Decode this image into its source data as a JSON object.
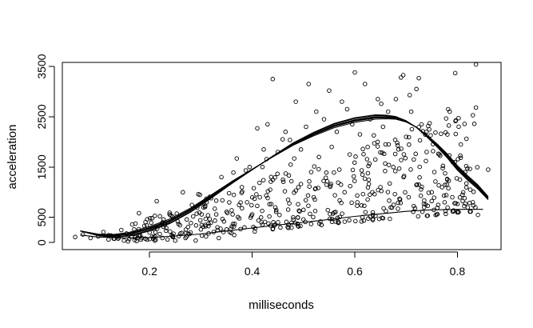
{
  "chart_data": {
    "type": "scatter",
    "title": "",
    "xlabel": "milliseconds",
    "ylabel": "acceleration",
    "xlim": [
      0.03,
      0.885
    ],
    "ylim": [
      -140,
      3580
    ],
    "xticks": [
      0.2,
      0.4,
      0.6,
      0.8
    ],
    "xtick_labels": [
      "0.2",
      "0.4",
      "0.6",
      "0.8"
    ],
    "yticks": [
      0,
      500,
      1500,
      2500,
      3500
    ],
    "ytick_labels": [
      "0",
      "500",
      "1500",
      "2500",
      "3500"
    ],
    "grid": false,
    "legend": "none",
    "scatter_description": "~600 open-circle points; density increasing with x, spread growing with x",
    "scatter_points": [
      [
        0.055,
        110
      ],
      [
        0.07,
        160
      ],
      [
        0.085,
        90
      ],
      [
        0.1,
        120
      ],
      [
        0.11,
        210
      ],
      [
        0.12,
        60
      ],
      [
        0.125,
        140
      ],
      [
        0.13,
        80
      ],
      [
        0.14,
        100
      ],
      [
        0.145,
        250
      ],
      [
        0.15,
        40
      ],
      [
        0.155,
        180
      ],
      [
        0.16,
        70
      ],
      [
        0.165,
        120
      ],
      [
        0.17,
        260
      ],
      [
        0.175,
        30
      ],
      [
        0.18,
        150
      ],
      [
        0.185,
        90
      ],
      [
        0.19,
        330
      ],
      [
        0.195,
        60
      ],
      [
        0.2,
        200
      ],
      [
        0.205,
        120
      ],
      [
        0.21,
        40
      ],
      [
        0.215,
        280
      ],
      [
        0.22,
        170
      ],
      [
        0.225,
        90
      ],
      [
        0.23,
        350
      ],
      [
        0.235,
        60
      ],
      [
        0.24,
        220
      ],
      [
        0.245,
        130
      ],
      [
        0.25,
        40
      ],
      [
        0.255,
        420
      ],
      [
        0.26,
        180
      ],
      [
        0.265,
        1000
      ],
      [
        0.27,
        90
      ],
      [
        0.275,
        310
      ],
      [
        0.28,
        200
      ],
      [
        0.285,
        520
      ],
      [
        0.29,
        40
      ],
      [
        0.295,
        960
      ],
      [
        0.3,
        260
      ],
      [
        0.305,
        700
      ],
      [
        0.31,
        120
      ],
      [
        0.315,
        380
      ],
      [
        0.32,
        880
      ],
      [
        0.325,
        210
      ],
      [
        0.33,
        560
      ],
      [
        0.335,
        90
      ],
      [
        0.34,
        1300
      ],
      [
        0.345,
        420
      ],
      [
        0.35,
        260
      ],
      [
        0.355,
        980
      ],
      [
        0.36,
        640
      ],
      [
        0.365,
        150
      ],
      [
        0.37,
        1670
      ],
      [
        0.375,
        480
      ],
      [
        0.38,
        1100
      ],
      [
        0.385,
        300
      ],
      [
        0.39,
        800
      ],
      [
        0.395,
        1500
      ],
      [
        0.4,
        560
      ],
      [
        0.405,
        220
      ],
      [
        0.41,
        2270
      ],
      [
        0.415,
        900
      ],
      [
        0.42,
        1500
      ],
      [
        0.425,
        410
      ],
      [
        0.43,
        2350
      ],
      [
        0.435,
        1050
      ],
      [
        0.44,
        3250
      ],
      [
        0.445,
        700
      ],
      [
        0.45,
        1800
      ],
      [
        0.455,
        300
      ],
      [
        0.46,
        1250
      ],
      [
        0.465,
        2200
      ],
      [
        0.47,
        850
      ],
      [
        0.475,
        1550
      ],
      [
        0.48,
        500
      ],
      [
        0.485,
        2800
      ],
      [
        0.49,
        1100
      ],
      [
        0.495,
        1850
      ],
      [
        0.5,
        650
      ],
      [
        0.505,
        2300
      ],
      [
        0.51,
        3150
      ],
      [
        0.515,
        1400
      ],
      [
        0.52,
        900
      ],
      [
        0.525,
        2600
      ],
      [
        0.53,
        1700
      ],
      [
        0.535,
        350
      ],
      [
        0.54,
        2450
      ],
      [
        0.545,
        1150
      ],
      [
        0.55,
        3020
      ],
      [
        0.555,
        1900
      ],
      [
        0.56,
        600
      ],
      [
        0.565,
        2200
      ],
      [
        0.57,
        1450
      ],
      [
        0.575,
        2800
      ],
      [
        0.58,
        1000
      ],
      [
        0.585,
        2650
      ],
      [
        0.59,
        1750
      ],
      [
        0.595,
        2350
      ],
      [
        0.6,
        3380
      ],
      [
        0.605,
        800
      ],
      [
        0.61,
        2150
      ],
      [
        0.615,
        1350
      ],
      [
        0.62,
        3150
      ],
      [
        0.625,
        1900
      ],
      [
        0.63,
        2450
      ],
      [
        0.635,
        600
      ],
      [
        0.64,
        1650
      ],
      [
        0.645,
        2850
      ],
      [
        0.65,
        1100
      ],
      [
        0.655,
        2300
      ],
      [
        0.66,
        1950
      ],
      [
        0.665,
        2600
      ],
      [
        0.67,
        700
      ],
      [
        0.675,
        1500
      ],
      [
        0.68,
        2850
      ],
      [
        0.685,
        1850
      ],
      [
        0.69,
        3280
      ],
      [
        0.695,
        1300
      ],
      [
        0.7,
        2100
      ],
      [
        0.705,
        900
      ],
      [
        0.71,
        2600
      ],
      [
        0.715,
        1650
      ],
      [
        0.72,
        3050
      ],
      [
        0.725,
        1150
      ],
      [
        0.73,
        2350
      ],
      [
        0.735,
        700
      ],
      [
        0.74,
        1800
      ],
      [
        0.745,
        2250
      ],
      [
        0.75,
        1000
      ],
      [
        0.755,
        1400
      ],
      [
        0.76,
        560
      ],
      [
        0.765,
        1750
      ],
      [
        0.77,
        1100
      ],
      [
        0.775,
        800
      ],
      [
        0.78,
        1250
      ],
      [
        0.785,
        2600
      ],
      [
        0.79,
        900
      ],
      [
        0.795,
        1600
      ],
      [
        0.8,
        600
      ],
      [
        0.805,
        1250
      ],
      [
        0.81,
        950
      ],
      [
        0.815,
        1400
      ],
      [
        0.82,
        700
      ],
      [
        0.825,
        1050
      ],
      [
        0.83,
        800
      ],
      [
        0.835,
        700
      ],
      [
        0.84,
        550
      ],
      [
        0.86,
        1450
      ]
    ],
    "series": [
      {
        "name": "upper fitted curve",
        "x": [
          0.065,
          0.1,
          0.13,
          0.16,
          0.2,
          0.24,
          0.28,
          0.32,
          0.36,
          0.4,
          0.44,
          0.48,
          0.52,
          0.56,
          0.6,
          0.64,
          0.66,
          0.68,
          0.7,
          0.72,
          0.74,
          0.76,
          0.78,
          0.8,
          0.82,
          0.84,
          0.86
        ],
        "y": [
          230,
          150,
          130,
          160,
          270,
          420,
          640,
          910,
          1190,
          1450,
          1710,
          1960,
          2160,
          2330,
          2440,
          2500,
          2500,
          2480,
          2410,
          2290,
          2120,
          1930,
          1720,
          1480,
          1280,
          1100,
          880
        ]
      },
      {
        "name": "lower fitted curve",
        "x": [
          0.065,
          0.1,
          0.15,
          0.2,
          0.25,
          0.3,
          0.35,
          0.4,
          0.45,
          0.5,
          0.55,
          0.6,
          0.65,
          0.7,
          0.75,
          0.8,
          0.85
        ],
        "y": [
          150,
          110,
          90,
          100,
          130,
          170,
          230,
          290,
          350,
          400,
          460,
          520,
          570,
          620,
          650,
          660,
          660
        ]
      }
    ]
  }
}
